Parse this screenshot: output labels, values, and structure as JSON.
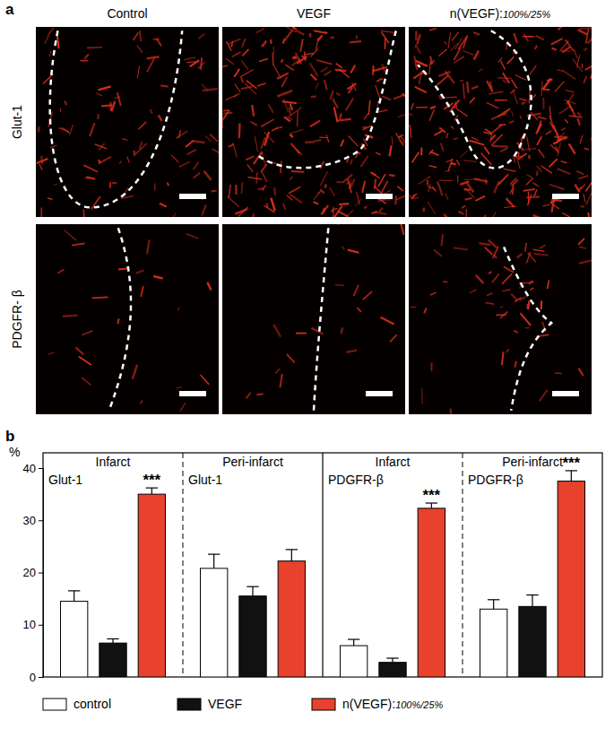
{
  "panel_labels": [
    "a",
    "b"
  ],
  "images": {
    "columns": [
      "Control",
      "VEGF",
      "n(VEGF):100%/25%"
    ],
    "rows": [
      "Glut-1",
      "PDGFR- β"
    ]
  },
  "chart_data": {
    "type": "bar",
    "ylabel": "%",
    "categories": [
      "Infarct",
      "Peri-infarct",
      "Infarct",
      "Peri-infarct"
    ],
    "subcategories": [
      "Glut-1",
      "Glut-1",
      "PDGFR-β",
      "PDGFR-β"
    ],
    "ylim": [
      0,
      40
    ],
    "yticks": [
      0,
      10,
      20,
      30,
      40
    ],
    "tick_labels": "y",
    "series": [
      {
        "name": "control",
        "color": "#ffffff",
        "values": [
          14.5,
          20.8,
          6,
          13
        ],
        "errors": [
          2,
          2.7,
          1.2,
          1.8
        ]
      },
      {
        "name": "VEGF",
        "color": "#111111",
        "values": [
          6.5,
          15.5,
          2.8,
          13.5
        ],
        "errors": [
          0.8,
          1.8,
          0.8,
          2.2
        ]
      },
      {
        "name": "n(VEGF):100%/25%",
        "color": "#e8412c",
        "values": [
          35,
          22.2,
          32.3,
          37.5
        ],
        "errors": [
          1.2,
          2.2,
          1,
          2
        ]
      }
    ],
    "annotations": [
      {
        "text": "***",
        "series": 2,
        "category": 0
      },
      {
        "text": "***",
        "series": 2,
        "category": 2
      },
      {
        "text": "***",
        "series": 2,
        "category": 3
      }
    ],
    "legend": "bottom"
  }
}
